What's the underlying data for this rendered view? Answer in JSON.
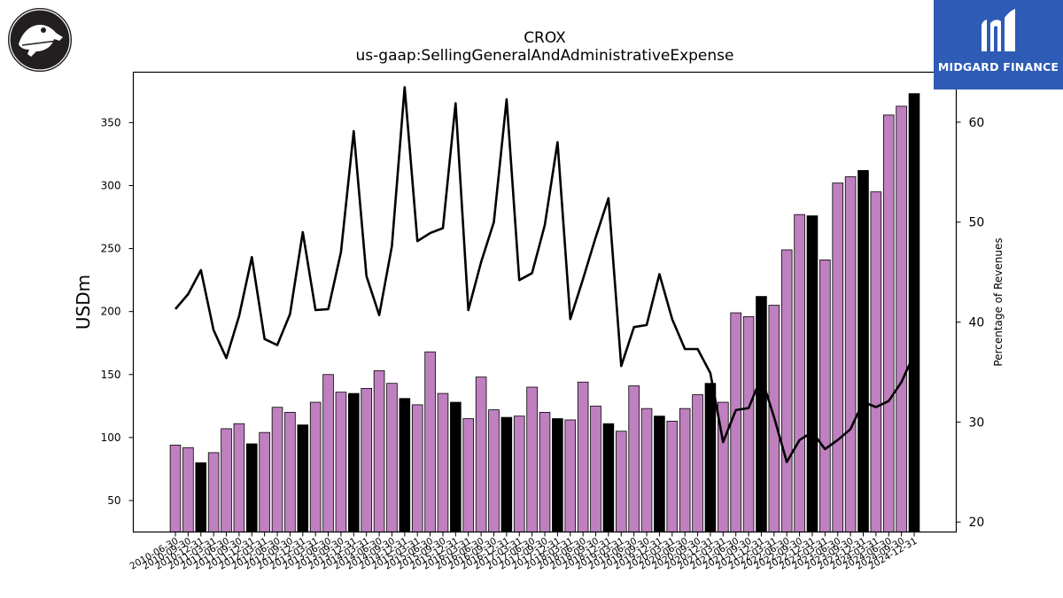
{
  "brand": {
    "name": "MIDGARD FINANCE",
    "logo_icon": "midgard-logo-icon"
  },
  "company_logo": {
    "icon": "crocodile-logo-icon"
  },
  "chart_data": {
    "type": "bar",
    "title": "CROX",
    "subtitle": "us-gaap:SellingGeneralAndAdministrativeExpense",
    "ylabel": "USDm",
    "y2label": "Percentage of Revenues",
    "ylim": [
      25,
      390
    ],
    "y2lim": [
      19,
      65
    ],
    "yticks": [
      50,
      100,
      150,
      200,
      250,
      300,
      350
    ],
    "y2ticks": [
      20,
      30,
      40,
      50,
      60
    ],
    "colors": {
      "quarter": "#bf80bf",
      "annual": "#000000",
      "line": "#000000"
    },
    "categories": [
      "2010-06-30",
      "2010-09-30",
      "2010-12-31",
      "2011-03-31",
      "2011-06-30",
      "2011-09-30",
      "2011-12-31",
      "2012-03-31",
      "2012-06-30",
      "2012-09-30",
      "2012-12-31",
      "2013-03-31",
      "2013-06-30",
      "2013-09-30",
      "2013-12-31",
      "2014-03-31",
      "2014-06-30",
      "2014-09-30",
      "2014-12-31",
      "2015-03-31",
      "2015-06-30",
      "2015-09-30",
      "2015-12-31",
      "2016-03-31",
      "2016-06-30",
      "2016-09-30",
      "2016-12-31",
      "2017-03-31",
      "2017-06-30",
      "2017-09-30",
      "2017-12-31",
      "2018-03-31",
      "2018-06-30",
      "2018-09-30",
      "2018-12-31",
      "2019-03-31",
      "2019-06-30",
      "2019-09-30",
      "2019-12-31",
      "2020-03-31",
      "2020-06-30",
      "2020-09-30",
      "2020-12-31",
      "2021-03-31",
      "2021-06-30",
      "2021-09-30",
      "2021-12-31",
      "2022-03-31",
      "2022-06-30",
      "2022-09-30",
      "2022-12-31",
      "2023-03-31",
      "2023-06-30",
      "2023-09-30",
      "2023-12-31",
      "2024-03-31",
      "2024-06-30",
      "2024-09-30",
      "2024-12-31"
    ],
    "series": [
      {
        "values": [
          94,
          92,
          80,
          88,
          107,
          111,
          95,
          104,
          124,
          120,
          110,
          128,
          150,
          136,
          135,
          139,
          153,
          143,
          131,
          126,
          168,
          135,
          128,
          115,
          148,
          122,
          116,
          117,
          140,
          120,
          115,
          114,
          144,
          125,
          111,
          105,
          141,
          123,
          117,
          113,
          123,
          134,
          143,
          128,
          199,
          196,
          212,
          205,
          249,
          277,
          276,
          241,
          302,
          307,
          312,
          295,
          356,
          363,
          373
        ]
      },
      {
        "values": [
          41.3,
          42.8,
          45.2,
          39.2,
          36.4,
          40.6,
          46.5,
          38.3,
          37.7,
          40.8,
          49.0,
          41.2,
          41.3,
          47.0,
          59.1,
          44.6,
          40.7,
          47.6,
          63.5,
          48.1,
          48.9,
          49.4,
          61.9,
          41.2,
          46.0,
          50.0,
          62.3,
          44.2,
          44.9,
          49.7,
          58.0,
          40.3,
          44.3,
          48.5,
          52.4,
          35.6,
          39.5,
          39.7,
          44.8,
          40.3,
          37.3,
          37.3,
          34.9,
          28.0,
          31.2,
          31.4,
          34.5,
          30.5,
          26.0,
          28.2,
          29.0,
          27.3,
          28.2,
          29.3,
          32.0,
          31.5,
          32.1,
          34.0,
          36.8
        ]
      }
    ]
  }
}
